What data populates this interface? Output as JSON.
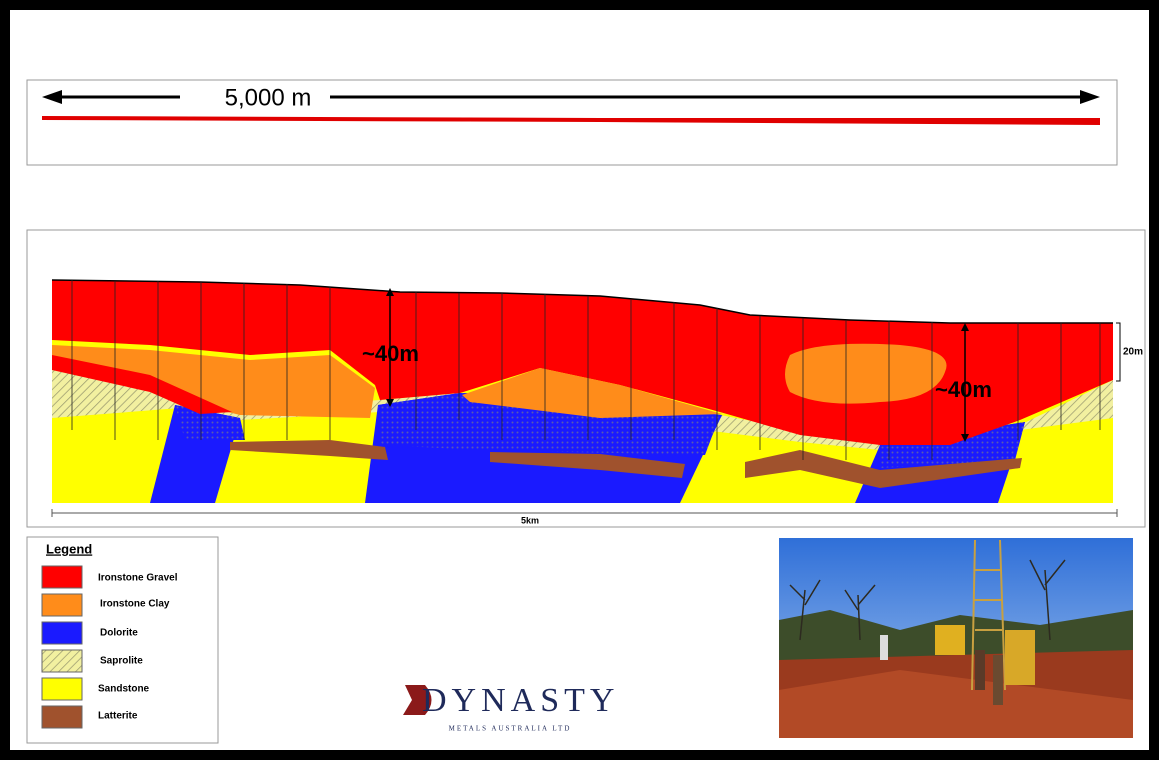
{
  "scale_bar": {
    "label": "5,000 m"
  },
  "section": {
    "annotations": [
      "~40m",
      "~40m"
    ],
    "scale_label": "20m",
    "width_label": "5km"
  },
  "legend": {
    "title": "Legend",
    "items": [
      "Ironstone Gravel",
      "Ironstone Clay",
      "Dolorite",
      "Saprolite",
      "Sandstone",
      "Latterite"
    ]
  },
  "logo": {
    "name": "DYNASTY",
    "tagline": "METALS AUSTRALIA LTD"
  }
}
